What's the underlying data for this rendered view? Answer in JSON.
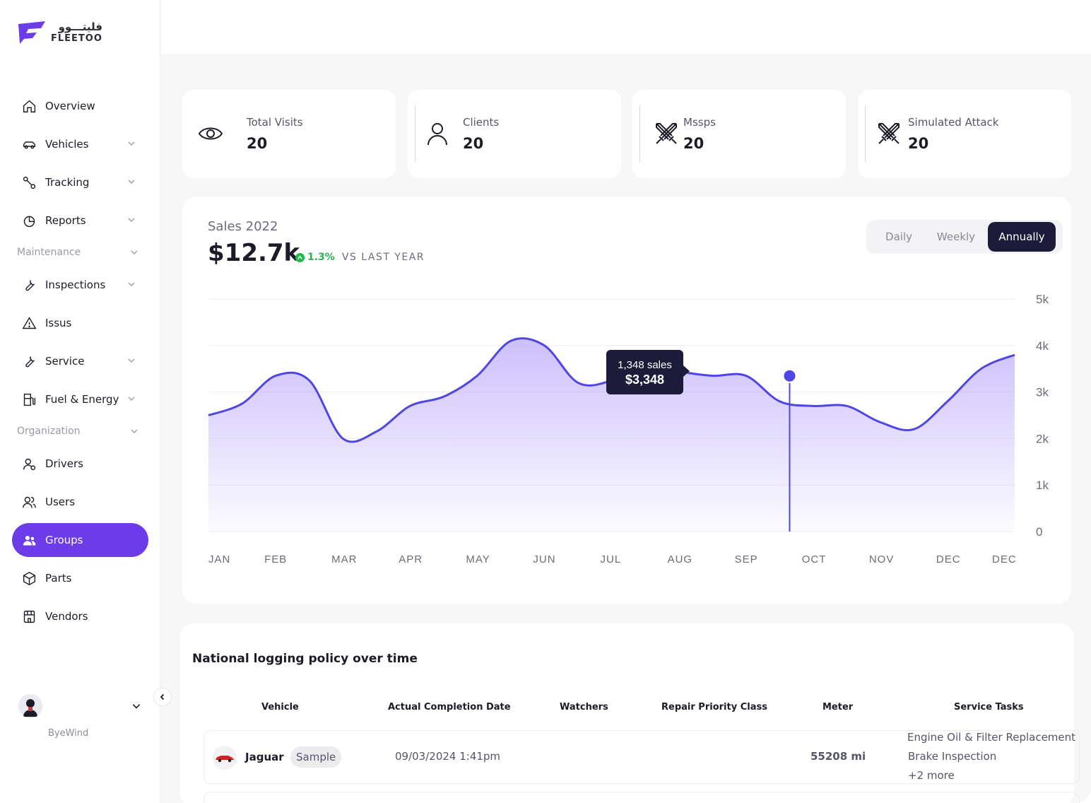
{
  "brand": {
    "arabic": "فليتـــوو",
    "name": "FLEETOO"
  },
  "sidebar": {
    "items": [
      {
        "label": "Overview",
        "icon": "home-icon",
        "chevron": false
      },
      {
        "label": "Vehicles",
        "icon": "car-icon",
        "chevron": true
      },
      {
        "label": "Tracking",
        "icon": "route-icon",
        "chevron": true
      },
      {
        "label": "Reports",
        "icon": "pie-chart-icon",
        "chevron": true
      },
      {
        "label": "Inspections",
        "icon": "wrench-icon",
        "chevron": true
      },
      {
        "label": "Issus",
        "icon": "warning-icon",
        "chevron": false
      },
      {
        "label": "Service",
        "icon": "wrench-icon",
        "chevron": true
      },
      {
        "label": "Fuel & Energy",
        "icon": "fuel-icon",
        "chevron": true
      },
      {
        "label": "Drivers",
        "icon": "driver-icon",
        "chevron": false
      },
      {
        "label": "Users",
        "icon": "users-icon",
        "chevron": false
      },
      {
        "label": "Groups",
        "icon": "groups-icon",
        "chevron": false,
        "active": true
      },
      {
        "label": "Parts",
        "icon": "box-icon",
        "chevron": false
      },
      {
        "label": "Vendors",
        "icon": "store-icon",
        "chevron": false
      }
    ],
    "sections": {
      "maintenance": "Maintenance",
      "organization": "Organization"
    },
    "user": {
      "name": "ByeWind"
    }
  },
  "stats": [
    {
      "label": "Total Visits",
      "value": "20",
      "icon": "eye-icon"
    },
    {
      "label": "Clients",
      "value": "20",
      "icon": "user-icon"
    },
    {
      "label": "Mssps",
      "value": "20",
      "icon": "crossed-swords-icon"
    },
    {
      "label": "Simulated Attack",
      "value": "20",
      "icon": "crossed-swords-icon"
    }
  ],
  "sales": {
    "title": "Sales 2022",
    "amount": "$12.7k",
    "change": "1.3%",
    "change_text": "VS LAST YEAR",
    "periods": [
      "Daily",
      "Weekly",
      "Annually"
    ],
    "active_period": "Annually",
    "tooltip": {
      "sales": "1,348 sales",
      "amount": "$3,348"
    }
  },
  "chart_data": {
    "type": "area",
    "categories": [
      "JAN",
      "FEB",
      "MAR",
      "APR",
      "MAY",
      "JUN",
      "JUL",
      "AUG",
      "SEP",
      "OCT",
      "NOV",
      "DEC",
      "DEC"
    ],
    "ytick_labels": [
      "0",
      "1k",
      "2k",
      "3k",
      "4k",
      "5k"
    ],
    "ylim": [
      0,
      5000
    ],
    "series": [
      {
        "x": [
          0,
          0.5,
          1,
          1.5,
          2,
          2.5,
          3,
          3.5,
          4,
          4.5,
          5,
          5.5,
          6,
          6.5,
          7,
          7.5,
          8,
          8.5,
          9,
          9.5,
          10,
          10.5,
          11,
          11.5,
          12
        ],
        "values": [
          2500,
          2750,
          3350,
          3250,
          2000,
          2150,
          2700,
          2900,
          3350,
          4100,
          4000,
          3200,
          3250,
          3650,
          3450,
          3350,
          3350,
          2800,
          2700,
          2700,
          2350,
          2200,
          2800,
          3500,
          3800
        ]
      }
    ],
    "highlight": {
      "x": 8.65,
      "value": 3348,
      "sales": "1,348 sales",
      "amount": "$3,348"
    },
    "accent": "#4f46e5",
    "fill": "#c4b5fd",
    "grid": true
  },
  "table": {
    "title": "National logging policy over time",
    "columns": [
      "Vehicle",
      "Actual Completion Date",
      "Watchers",
      "Repair Priority Class",
      "Meter",
      "Service Tasks"
    ],
    "rows": [
      {
        "vehicle": "Jaguar",
        "badge": "Sample",
        "date": "09/03/2024 1:41pm",
        "meter": "55208 mi",
        "tasks": [
          "Engine Oil & Filter Replacement",
          "Brake Inspection",
          "+2 more"
        ]
      }
    ]
  },
  "colors": {
    "primary": "#6c3ce9",
    "dark": "#1c1c3a",
    "positive": "#1fb84a"
  }
}
